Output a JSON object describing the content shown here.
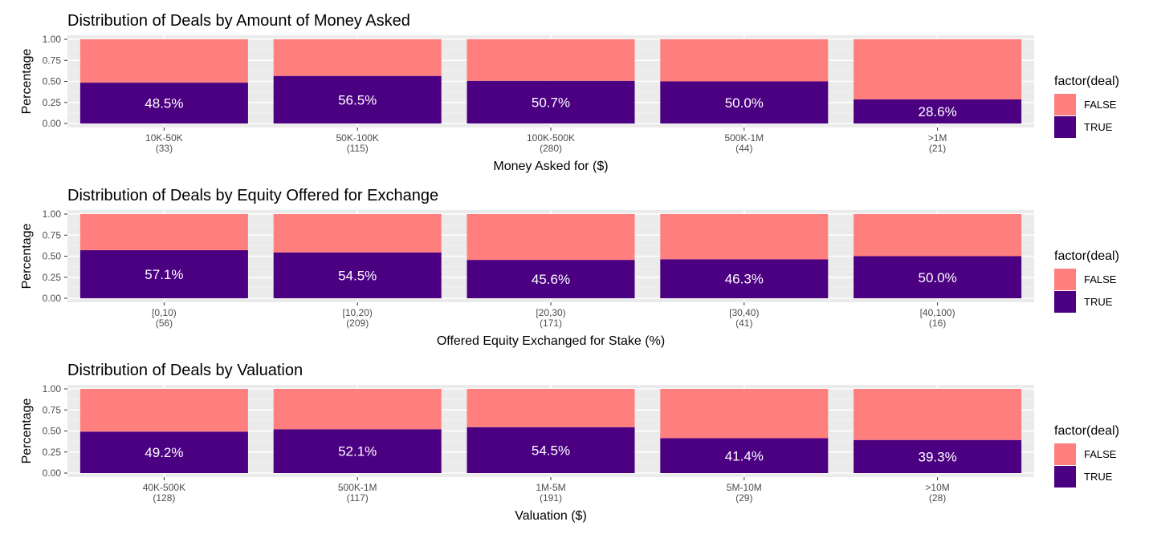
{
  "colors": {
    "false": "#FF7F7F",
    "true": "#4B0082",
    "panel": "#EBEBEB",
    "grid_major": "#FFFFFF",
    "grid_minor": "#F5F5F5"
  },
  "chart_data": [
    {
      "type": "bar",
      "stacked": "percent",
      "title": "Distribution of Deals by Amount of Money Asked",
      "xlabel": "Money Asked for ($)",
      "ylabel": "Percentage",
      "ylim": [
        0,
        1
      ],
      "yticks": [
        "0.00",
        "0.25",
        "0.50",
        "0.75",
        "1.00"
      ],
      "categories": [
        "10K-50K",
        "50K-100K",
        "100K-500K",
        "500K-1M",
        ">1M"
      ],
      "counts": [
        "(33)",
        "(115)",
        "(280)",
        "(44)",
        "(21)"
      ],
      "series": [
        {
          "name": "FALSE",
          "values": [
            0.515,
            0.435,
            0.493,
            0.5,
            0.714
          ]
        },
        {
          "name": "TRUE",
          "values": [
            0.485,
            0.565,
            0.507,
            0.5,
            0.286
          ]
        }
      ],
      "data_labels": [
        "48.5%",
        "56.5%",
        "50.7%",
        "50.0%",
        "28.6%"
      ],
      "legend": {
        "title": "factor(deal)",
        "items": [
          "FALSE",
          "TRUE"
        ],
        "placement": "right"
      }
    },
    {
      "type": "bar",
      "stacked": "percent",
      "title": "Distribution of Deals by Equity Offered for Exchange",
      "xlabel": "Offered Equity Exchanged for Stake (%)",
      "ylabel": "Percentage",
      "ylim": [
        0,
        1
      ],
      "yticks": [
        "0.00",
        "0.25",
        "0.50",
        "0.75",
        "1.00"
      ],
      "categories": [
        "[0,10)",
        "[10,20)",
        "[20,30)",
        "[30,40)",
        "[40,100)"
      ],
      "counts": [
        "(56)",
        "(209)",
        "(171)",
        "(41)",
        "(16)"
      ],
      "series": [
        {
          "name": "FALSE",
          "values": [
            0.429,
            0.455,
            0.544,
            0.537,
            0.5
          ]
        },
        {
          "name": "TRUE",
          "values": [
            0.571,
            0.545,
            0.456,
            0.463,
            0.5
          ]
        }
      ],
      "data_labels": [
        "57.1%",
        "54.5%",
        "45.6%",
        "46.3%",
        "50.0%"
      ],
      "legend": {
        "title": "factor(deal)",
        "items": [
          "FALSE",
          "TRUE"
        ],
        "placement": "right"
      }
    },
    {
      "type": "bar",
      "stacked": "percent",
      "title": "Distribution of Deals by Valuation",
      "xlabel": "Valuation ($)",
      "ylabel": "Percentage",
      "ylim": [
        0,
        1
      ],
      "yticks": [
        "0.00",
        "0.25",
        "0.50",
        "0.75",
        "1.00"
      ],
      "categories": [
        "40K-500K",
        "500K-1M",
        "1M-5M",
        "5M-10M",
        ">10M"
      ],
      "counts": [
        "(128)",
        "(117)",
        "(191)",
        "(29)",
        "(28)"
      ],
      "series": [
        {
          "name": "FALSE",
          "values": [
            0.508,
            0.479,
            0.455,
            0.586,
            0.607
          ]
        },
        {
          "name": "TRUE",
          "values": [
            0.492,
            0.521,
            0.545,
            0.414,
            0.393
          ]
        }
      ],
      "data_labels": [
        "49.2%",
        "52.1%",
        "54.5%",
        "41.4%",
        "39.3%"
      ],
      "legend": {
        "title": "factor(deal)",
        "items": [
          "FALSE",
          "TRUE"
        ],
        "placement": "right"
      }
    }
  ]
}
